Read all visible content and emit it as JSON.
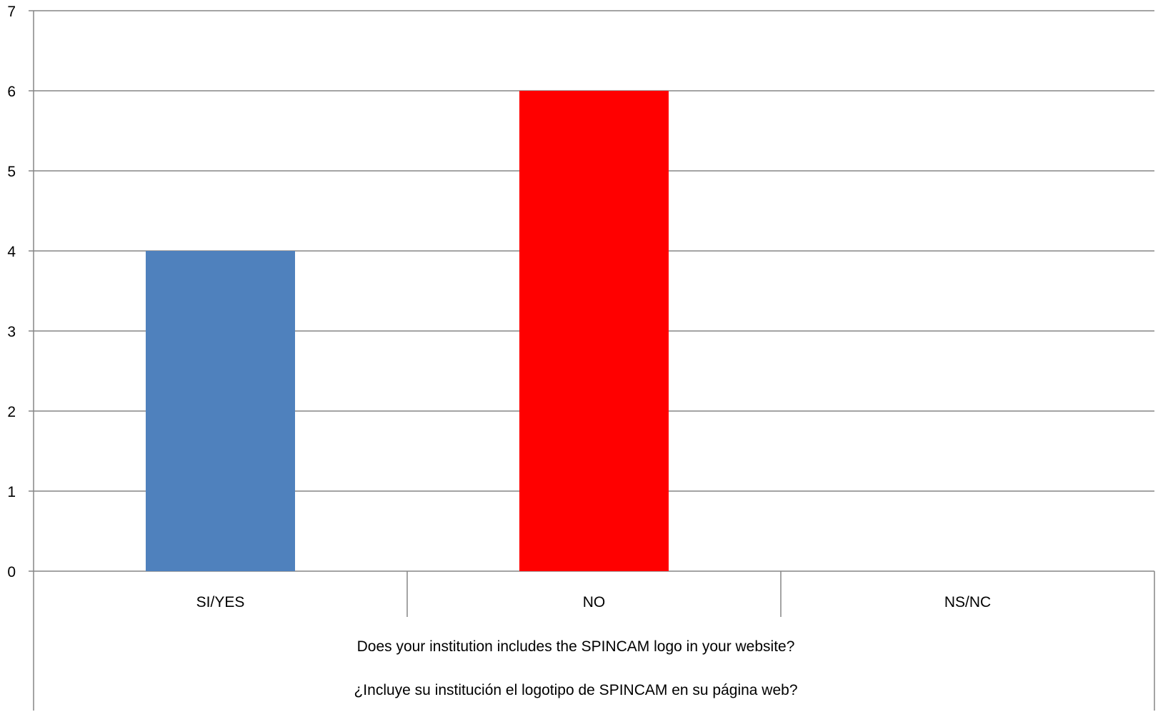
{
  "chart_data": {
    "type": "bar",
    "categories": [
      "SI/YES",
      "NO",
      "NS/NC"
    ],
    "values": [
      4,
      6,
      0
    ],
    "colors": [
      "#4F81BD",
      "#FF0000",
      "#4F81BD"
    ],
    "ylim": [
      0,
      7
    ],
    "yticks": [
      0,
      1,
      2,
      3,
      4,
      5,
      6,
      7
    ],
    "grid": true,
    "legend": "none",
    "xlabel_lines": [
      "Does your institution includes the SPINCAM logo in your website?",
      "¿Incluye su institución el logotipo de SPINCAM en su página web?"
    ]
  },
  "colors": {
    "grid": "#868686",
    "axis": "#868686"
  }
}
